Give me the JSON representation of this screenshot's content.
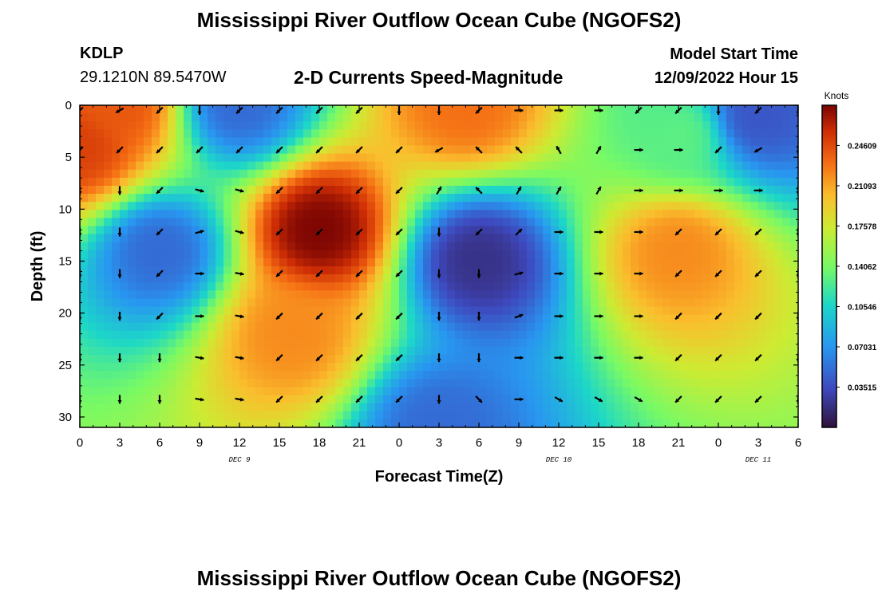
{
  "header": {
    "title": "Mississippi River Outflow Ocean Cube (NGOFS2)",
    "station": "KDLP",
    "coords": "29.1210N  89.5470W",
    "subtitle": "2-D Currents Speed-Magnitude",
    "model_start_label": "Model Start Time",
    "model_start_value": "12/09/2022 Hour 15"
  },
  "footer": {
    "title_repeat": "Mississippi River Outflow Ocean Cube (NGOFS2)"
  },
  "chart_data": {
    "type": "heatmap",
    "xlabel": "Forecast Time(Z)",
    "ylabel": "Depth (ft)",
    "x_tick_labels": [
      "0",
      "3",
      "6",
      "9",
      "12",
      "15",
      "18",
      "21",
      "0",
      "3",
      "6",
      "9",
      "12",
      "15",
      "18",
      "21",
      "0",
      "3",
      "6"
    ],
    "x_range_hours": [
      0,
      54
    ],
    "y_ticks": [
      0,
      5,
      10,
      15,
      20,
      25,
      30
    ],
    "ylim": [
      0,
      31
    ],
    "day_labels": [
      {
        "text": "DEC 9",
        "hour": 12
      },
      {
        "text": "DEC 10",
        "hour": 36
      },
      {
        "text": "DEC 11",
        "hour": 51
      }
    ],
    "colorbar": {
      "title": "Knots",
      "tick_labels": [
        "0.24609",
        "0.21093",
        "0.17578",
        "0.14062",
        "0.10546",
        "0.07031",
        "0.03515"
      ],
      "tick_values": [
        0.24609,
        0.21093,
        0.17578,
        0.14062,
        0.10546,
        0.07031,
        0.03515
      ],
      "range": [
        0.0,
        0.2812
      ]
    },
    "speed_features": [
      {
        "hour": 0,
        "depth": 4,
        "speed": 0.25
      },
      {
        "hour": 3,
        "depth": 0,
        "speed": 0.24
      },
      {
        "hour": 6,
        "depth": 14,
        "speed": 0.05
      },
      {
        "hour": 18,
        "depth": 12,
        "speed": 0.28
      },
      {
        "hour": 16,
        "depth": 22,
        "speed": 0.22
      },
      {
        "hour": 12,
        "depth": 0,
        "speed": 0.05
      },
      {
        "hour": 29,
        "depth": 0,
        "speed": 0.23
      },
      {
        "hour": 30,
        "depth": 15,
        "speed": 0.02
      },
      {
        "hour": 45,
        "depth": 14,
        "speed": 0.22
      },
      {
        "hour": 51,
        "depth": 1,
        "speed": 0.04
      },
      {
        "hour": 45,
        "depth": 3,
        "speed": 0.13
      },
      {
        "hour": 27,
        "depth": 31,
        "speed": 0.05
      }
    ],
    "vector_columns_hours": [
      0,
      3,
      6,
      9,
      12,
      15,
      18,
      21,
      24,
      27,
      30,
      33,
      36,
      39,
      42,
      45,
      48,
      51,
      54
    ],
    "vector_rows_depth": [
      0.5,
      4.3,
      8.2,
      12.2,
      16.2,
      20.3,
      24.3,
      28.3
    ],
    "vector_angle_deg": {
      "0": [
        135,
        135,
        90,
        90,
        90,
        90,
        90,
        90
      ],
      "3": [
        150,
        135,
        90,
        90,
        90,
        90,
        90,
        90
      ],
      "6": [
        135,
        135,
        135,
        135,
        135,
        135,
        90,
        90
      ],
      "9": [
        90,
        135,
        15,
        -15,
        0,
        0,
        10,
        10
      ],
      "12": [
        135,
        135,
        15,
        15,
        10,
        10,
        10,
        10
      ],
      "15": [
        135,
        135,
        135,
        135,
        135,
        135,
        135,
        135
      ],
      "18": [
        135,
        135,
        135,
        135,
        135,
        135,
        135,
        135
      ],
      "21": [
        135,
        135,
        135,
        135,
        135,
        135,
        135,
        135
      ],
      "24": [
        90,
        135,
        135,
        135,
        135,
        135,
        135,
        135
      ],
      "27": [
        90,
        150,
        -60,
        90,
        90,
        90,
        90,
        90
      ],
      "30": [
        135,
        -135,
        -135,
        135,
        90,
        90,
        90,
        45
      ],
      "33": [
        0,
        -135,
        -60,
        -45,
        -15,
        -20,
        0,
        0
      ],
      "36": [
        0,
        -120,
        -60,
        0,
        0,
        0,
        0,
        30
      ],
      "39": [
        0,
        -60,
        -60,
        0,
        0,
        0,
        0,
        30
      ],
      "42": [
        135,
        0,
        0,
        0,
        0,
        0,
        0,
        30
      ],
      "45": [
        135,
        0,
        0,
        135,
        135,
        135,
        135,
        135
      ],
      "48": [
        90,
        135,
        0,
        135,
        135,
        135,
        135,
        135
      ],
      "51": [
        135,
        150,
        0,
        135,
        135,
        135,
        135,
        135
      ],
      "54": [
        90,
        90,
        90,
        90,
        90,
        90,
        90,
        90
      ]
    }
  }
}
